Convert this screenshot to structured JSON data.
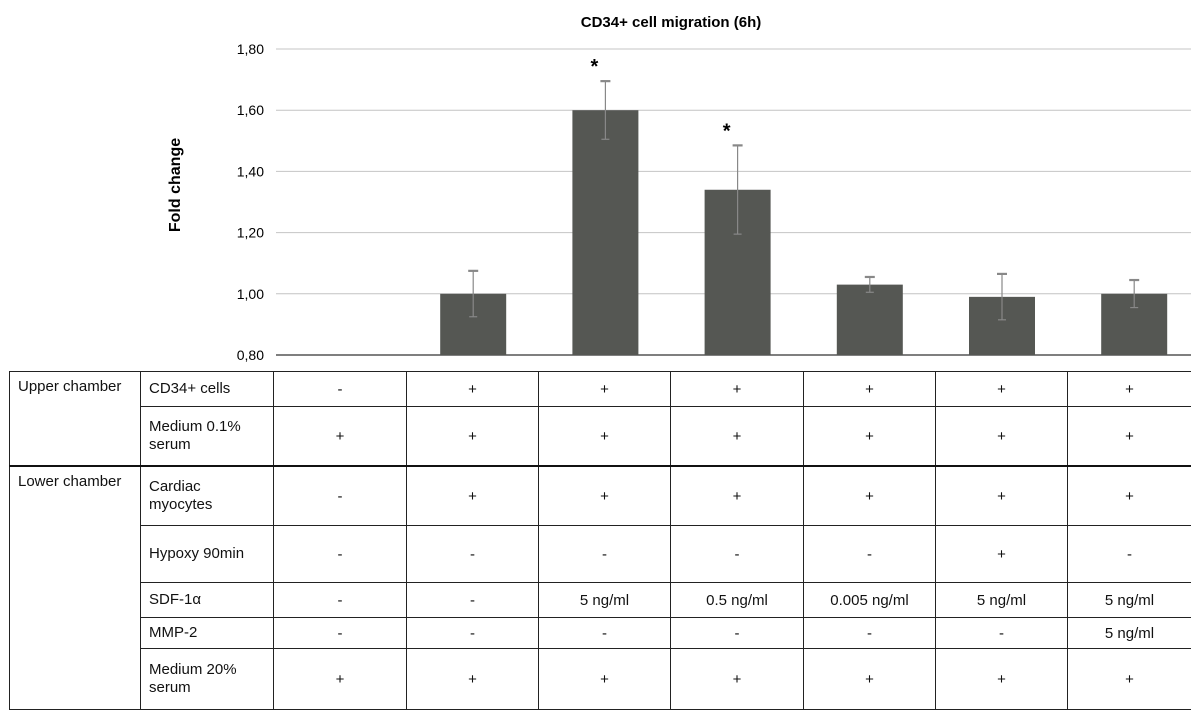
{
  "chart_data": {
    "type": "bar",
    "title": "CD34+ cell migration (6h)",
    "ylabel": "Fold change",
    "xlabel": "",
    "ylim": [
      0.8,
      1.8
    ],
    "yticks": [
      "0,80",
      "1,00",
      "1,20",
      "1,40",
      "1,60",
      "1,80"
    ],
    "ytick_values": [
      0.8,
      1.0,
      1.2,
      1.4,
      1.6,
      1.8
    ],
    "grid": true,
    "bar_color": "#555753",
    "error_color": "#888888",
    "values": [
      null,
      1.0,
      1.6,
      1.34,
      1.03,
      0.99,
      1.0
    ],
    "errors": [
      null,
      0.075,
      0.095,
      0.145,
      0.025,
      0.075,
      0.045
    ],
    "significance": [
      "",
      "",
      "*",
      "*",
      "",
      "",
      ""
    ]
  },
  "table": {
    "groups": [
      {
        "label": "Upper chamber",
        "rows": [
          {
            "condition": "CD34+ cells",
            "values": [
              "-",
              "+",
              "+",
              "+",
              "+",
              "+",
              "+"
            ]
          },
          {
            "condition": "Medium 0.1% serum",
            "values": [
              "+",
              "+",
              "+",
              "+",
              "+",
              "+",
              "+"
            ]
          }
        ]
      },
      {
        "label": "Lower chamber",
        "rows": [
          {
            "condition": "Cardiac myocytes",
            "values": [
              "-",
              "+",
              "+",
              "+",
              "+",
              "+",
              "+"
            ]
          },
          {
            "condition": "Hypoxy 90min",
            "values": [
              "-",
              "-",
              "-",
              "-",
              "-",
              "+",
              "-"
            ]
          },
          {
            "condition": "SDF-1α",
            "values": [
              "-",
              "-",
              "5 ng/ml",
              "0.5 ng/ml",
              "0.005 ng/ml",
              "5 ng/ml",
              "5 ng/ml"
            ]
          },
          {
            "condition": "MMP-2",
            "values": [
              "-",
              "-",
              "-",
              "-",
              "-",
              "-",
              "5 ng/ml"
            ]
          },
          {
            "condition": "Medium 20% serum",
            "values": [
              "+",
              "+",
              "+",
              "+",
              "+",
              "+",
              "+"
            ]
          }
        ]
      }
    ]
  }
}
